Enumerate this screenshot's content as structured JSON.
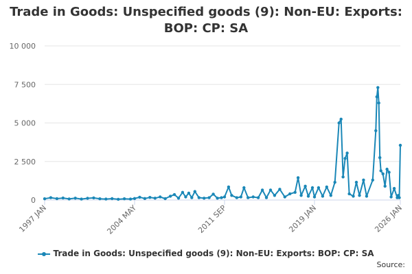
{
  "chart_data": {
    "type": "line",
    "title_lines": [
      "Trade in Goods: Unspecified goods (9): Non-EU: Exports:",
      "BOP: CP: SA"
    ],
    "x_tick_labels": [
      "1997 JAN",
      "2004 MAY",
      "2011 SEP",
      "2019 JAN",
      "2026 JAN"
    ],
    "x_tick_positions": [
      "1997-01",
      "2004-05",
      "2011-09",
      "2019-01",
      "2026-01"
    ],
    "xlim": [
      "1997-01",
      "2026-01"
    ],
    "y_tick_labels": [
      "0",
      "2 500",
      "5 000",
      "7 500",
      "10 000"
    ],
    "y_tick_values": [
      0,
      2500,
      5000,
      7500,
      10000
    ],
    "ylim": [
      0,
      10000
    ],
    "grid": true,
    "legend_position": "bottom",
    "color": "#1a87b7",
    "series": [
      {
        "name": "Trade in Goods: Unspecified goods (9): Non-EU: Exports: BOP: CP: SA",
        "points": [
          [
            "1997-01",
            80
          ],
          [
            "1997-07",
            150
          ],
          [
            "1998-01",
            90
          ],
          [
            "1998-07",
            130
          ],
          [
            "1999-01",
            70
          ],
          [
            "1999-07",
            120
          ],
          [
            "2000-01",
            60
          ],
          [
            "2000-07",
            110
          ],
          [
            "2001-01",
            140
          ],
          [
            "2001-07",
            80
          ],
          [
            "2002-01",
            60
          ],
          [
            "2002-07",
            90
          ],
          [
            "2003-01",
            50
          ],
          [
            "2003-07",
            80
          ],
          [
            "2004-01",
            60
          ],
          [
            "2004-05",
            100
          ],
          [
            "2004-10",
            180
          ],
          [
            "2005-03",
            100
          ],
          [
            "2005-08",
            170
          ],
          [
            "2006-01",
            120
          ],
          [
            "2006-06",
            200
          ],
          [
            "2006-11",
            90
          ],
          [
            "2007-04",
            250
          ],
          [
            "2007-08",
            350
          ],
          [
            "2007-12",
            120
          ],
          [
            "2008-04",
            500
          ],
          [
            "2008-07",
            200
          ],
          [
            "2008-10",
            450
          ],
          [
            "2009-01",
            150
          ],
          [
            "2009-04",
            550
          ],
          [
            "2009-08",
            150
          ],
          [
            "2010-01",
            120
          ],
          [
            "2010-06",
            150
          ],
          [
            "2010-10",
            380
          ],
          [
            "2011-02",
            120
          ],
          [
            "2011-06",
            150
          ],
          [
            "2011-09",
            200
          ],
          [
            "2012-01",
            850
          ],
          [
            "2012-04",
            300
          ],
          [
            "2012-09",
            150
          ],
          [
            "2013-01",
            200
          ],
          [
            "2013-04",
            800
          ],
          [
            "2013-08",
            150
          ],
          [
            "2014-01",
            200
          ],
          [
            "2014-06",
            150
          ],
          [
            "2014-10",
            650
          ],
          [
            "2015-02",
            150
          ],
          [
            "2015-06",
            650
          ],
          [
            "2015-10",
            300
          ],
          [
            "2016-03",
            700
          ],
          [
            "2016-08",
            200
          ],
          [
            "2017-01",
            400
          ],
          [
            "2017-06",
            500
          ],
          [
            "2017-09",
            1450
          ],
          [
            "2017-12",
            300
          ],
          [
            "2018-04",
            900
          ],
          [
            "2018-07",
            250
          ],
          [
            "2018-11",
            800
          ],
          [
            "2019-01",
            200
          ],
          [
            "2019-05",
            800
          ],
          [
            "2019-09",
            250
          ],
          [
            "2020-01",
            850
          ],
          [
            "2020-05",
            300
          ],
          [
            "2020-09",
            1150
          ],
          [
            "2021-01",
            5000
          ],
          [
            "2021-03",
            5250
          ],
          [
            "2021-05",
            1500
          ],
          [
            "2021-07",
            2700
          ],
          [
            "2021-09",
            3050
          ],
          [
            "2021-11",
            400
          ],
          [
            "2022-03",
            250
          ],
          [
            "2022-06",
            1150
          ],
          [
            "2022-09",
            300
          ],
          [
            "2023-01",
            1300
          ],
          [
            "2023-04",
            250
          ],
          [
            "2023-10",
            1300
          ],
          [
            "2024-01",
            4500
          ],
          [
            "2024-02",
            6700
          ],
          [
            "2024-03",
            7300
          ],
          [
            "2024-04",
            6300
          ],
          [
            "2024-05",
            2750
          ],
          [
            "2024-06",
            1900
          ],
          [
            "2024-08",
            1700
          ],
          [
            "2024-10",
            900
          ],
          [
            "2024-12",
            2000
          ],
          [
            "2025-02",
            1800
          ],
          [
            "2025-04",
            200
          ],
          [
            "2025-07",
            750
          ],
          [
            "2025-10",
            150
          ],
          [
            "2025-11",
            300
          ],
          [
            "2025-12",
            150
          ],
          [
            "2026-01",
            3550
          ]
        ]
      }
    ],
    "legend_label": "Trade in Goods: Unspecified goods (9): Non-EU: Exports: BOP: CP: SA",
    "source_label": "Source:"
  }
}
